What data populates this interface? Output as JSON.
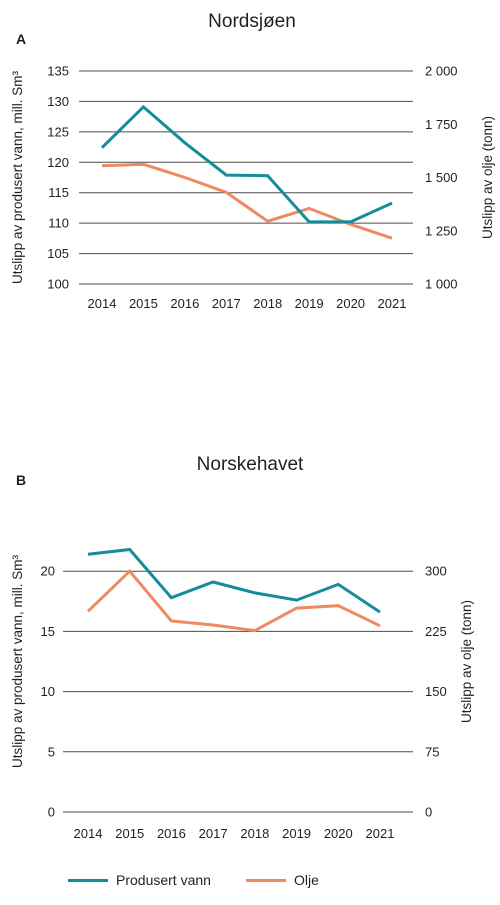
{
  "colors": {
    "vann": "#168c9a",
    "olje": "#ee8a62",
    "grid": "#4d4d4d",
    "text": "#231f20"
  },
  "legend": [
    {
      "key": "vann",
      "label": "Produsert vann"
    },
    {
      "key": "olje",
      "label": "Olje"
    }
  ],
  "chart_data": [
    {
      "type": "line",
      "panel": "A",
      "title": "Nordsjøen",
      "x": [
        "2014",
        "2015",
        "2016",
        "2017",
        "2018",
        "2019",
        "2020",
        "2021"
      ],
      "ylabel_left": "Utslipp av produsert vann, mill. Sm³",
      "ylabel_right": "Utslipp av olje (tonn)",
      "ylim_left": [
        100,
        135
      ],
      "ylim_right": [
        1000,
        2000
      ],
      "yticks_left": [
        "100",
        "105",
        "110",
        "115",
        "120",
        "125",
        "130",
        "135"
      ],
      "yticks_right": [
        "1 000",
        "1 250",
        "1 500",
        "1 750",
        "2 000"
      ],
      "grid": true,
      "series": [
        {
          "name": "Produsert vann",
          "key": "vann",
          "axis": "left",
          "values": [
            122.4,
            129.1,
            123.2,
            117.9,
            117.8,
            110.2,
            110.2,
            113.3
          ]
        },
        {
          "name": "Olje",
          "key": "olje",
          "axis": "right",
          "values": [
            1555,
            1562,
            1500,
            1430,
            1295,
            1355,
            1280,
            1215
          ]
        }
      ]
    },
    {
      "type": "line",
      "panel": "B",
      "title": "Norskehavet",
      "x": [
        "2014",
        "2015",
        "2016",
        "2017",
        "2018",
        "2019",
        "2020",
        "2021"
      ],
      "ylabel_left": "Utslipp av produsert vann, mill. Sm³",
      "ylabel_right": "Utslipp av olje (tonn)",
      "ylim_left": [
        0,
        25
      ],
      "ylim_right": [
        0,
        375
      ],
      "yticks_left": [
        "0",
        "5",
        "10",
        "15",
        "20"
      ],
      "yticks_right": [
        "0",
        "75",
        "150",
        "225",
        "300"
      ],
      "grid": true,
      "series": [
        {
          "name": "Produsert vann",
          "key": "vann",
          "axis": "left",
          "values": [
            21.4,
            21.8,
            17.8,
            19.1,
            18.2,
            17.6,
            18.9,
            16.6
          ]
        },
        {
          "name": "Olje",
          "key": "olje",
          "axis": "right",
          "values": [
            250,
            300,
            238,
            233,
            226,
            254,
            257,
            232
          ]
        }
      ]
    }
  ]
}
